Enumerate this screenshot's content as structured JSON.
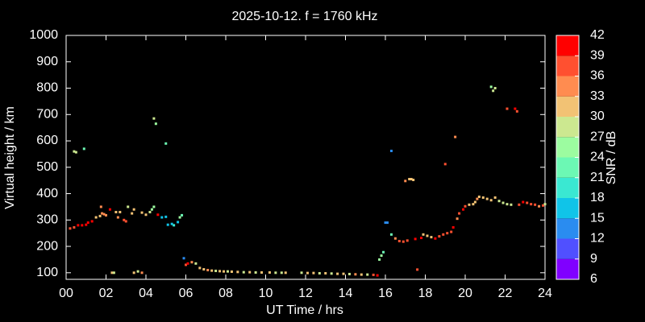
{
  "chart_data": {
    "type": "scatter",
    "title": "2025-10-12. f = 1760 kHz",
    "x_label": "UT Time / hrs",
    "y_label": "Virtual height / km",
    "xlim": [
      0,
      24
    ],
    "xticks": [
      {
        "value": 0,
        "label": "00"
      },
      {
        "value": 2,
        "label": "02"
      },
      {
        "value": 4,
        "label": "04"
      },
      {
        "value": 6,
        "label": "06"
      },
      {
        "value": 8,
        "label": "08"
      },
      10,
      12,
      14,
      16,
      18,
      20,
      22,
      24
    ],
    "ylim": [
      75,
      1000
    ],
    "yticks": [
      100,
      200,
      300,
      400,
      500,
      600,
      700,
      800,
      900,
      1000
    ],
    "colorbar": {
      "label": "SNR / dB",
      "lim": [
        6,
        42
      ],
      "ticks": [
        6,
        9,
        12,
        15,
        18,
        21,
        24,
        27,
        30,
        33,
        36,
        39,
        42
      ],
      "colors": [
        "#8000ff",
        "#5050ff",
        "#2a8cf0",
        "#10c4e8",
        "#3ae8d2",
        "#6cf8b4",
        "#9cfca0",
        "#cce890",
        "#f2c274",
        "#ff8c50",
        "#ff5030",
        "#ff0000"
      ]
    },
    "x": [
      0.2,
      0.4,
      0.6,
      0.8,
      1.0,
      0.4,
      0.5,
      0.9,
      1.1,
      1.3,
      1.5,
      1.7,
      1.8,
      1.9,
      2.0,
      1.75,
      2.2,
      2.5,
      2.7,
      2.6,
      2.9,
      3.0,
      3.1,
      3.3,
      3.4,
      3.8,
      4.0,
      4.2,
      4.3,
      4.4,
      4.4,
      4.5,
      4.6,
      4.8,
      5.0,
      5.0,
      5.1,
      5.3,
      5.4,
      5.6,
      5.7,
      5.8,
      5.9,
      6.0,
      6.1,
      6.3,
      6.5,
      2.3,
      2.4,
      3.4,
      3.6,
      3.8,
      6.7,
      6.9,
      7.1,
      7.3,
      7.5,
      7.7,
      7.9,
      8.1,
      8.3,
      8.6,
      8.9,
      9.2,
      9.5,
      9.8,
      10.2,
      10.5,
      10.8,
      11.0,
      11.8,
      12.1,
      12.4,
      12.7,
      13.0,
      13.3,
      13.6,
      13.9,
      14.2,
      14.5,
      14.8,
      15.1,
      15.4,
      15.6,
      15.7,
      15.8,
      15.9,
      16.0,
      16.1,
      16.3,
      16.3,
      16.5,
      16.7,
      16.9,
      17.1,
      17.0,
      17.2,
      17.3,
      17.4,
      17.5,
      17.8,
      17.6,
      17.9,
      18.1,
      18.3,
      18.5,
      18.7,
      18.9,
      19.1,
      19.3,
      19.4,
      19.6,
      19.7,
      19.9,
      20.0,
      20.2,
      20.4,
      20.5,
      20.6,
      20.7,
      20.9,
      21.1,
      21.3,
      21.5,
      19.0,
      19.5,
      21.3,
      21.5,
      21.4,
      21.7,
      21.9,
      22.1,
      22.3,
      22.1,
      22.5,
      22.6,
      22.7,
      22.9,
      23.1,
      23.3,
      23.5,
      23.7,
      23.9,
      24.0
    ],
    "values": [
      268,
      272,
      280,
      280,
      282,
      560,
      557,
      570,
      290,
      295,
      310,
      315,
      325,
      322,
      318,
      350,
      340,
      330,
      330,
      310,
      300,
      295,
      350,
      325,
      340,
      328,
      320,
      330,
      340,
      350,
      685,
      665,
      320,
      310,
      312,
      590,
      282,
      285,
      280,
      292,
      310,
      318,
      155,
      130,
      135,
      140,
      135,
      100,
      100,
      100,
      105,
      100,
      118,
      113,
      110,
      108,
      107,
      106,
      105,
      105,
      104,
      103,
      102,
      102,
      101,
      101,
      101,
      100,
      100,
      100,
      100,
      99,
      99,
      98,
      98,
      97,
      96,
      96,
      95,
      94,
      93,
      93,
      92,
      90,
      150,
      165,
      178,
      290,
      290,
      562,
      245,
      230,
      220,
      218,
      222,
      448,
      455,
      455,
      452,
      228,
      232,
      112,
      245,
      240,
      235,
      230,
      238,
      245,
      250,
      255,
      272,
      305,
      325,
      340,
      352,
      358,
      360,
      368,
      380,
      388,
      385,
      380,
      375,
      385,
      512,
      615,
      805,
      800,
      790,
      372,
      365,
      360,
      358,
      722,
      722,
      712,
      358,
      368,
      365,
      360,
      358,
      352,
      355,
      360
    ],
    "snr": [
      36,
      36,
      39,
      39,
      39,
      27,
      27,
      21,
      39,
      39,
      30,
      30,
      33,
      33,
      33,
      33,
      39,
      30,
      30,
      33,
      36,
      36,
      27,
      30,
      30,
      30,
      30,
      27,
      24,
      24,
      27,
      24,
      39,
      15,
      15,
      21,
      15,
      15,
      18,
      15,
      24,
      21,
      12,
      36,
      39,
      33,
      27,
      30,
      27,
      30,
      27,
      33,
      30,
      30,
      33,
      30,
      28,
      30,
      31,
      28,
      30,
      32,
      29,
      30,
      28,
      30,
      31,
      27,
      29,
      30,
      28,
      30,
      32,
      29,
      30,
      28,
      31,
      30,
      29,
      33,
      30,
      28,
      36,
      39,
      24,
      24,
      21,
      12,
      12,
      12,
      21,
      33,
      36,
      36,
      36,
      33,
      30,
      30,
      30,
      39,
      39,
      36,
      30,
      30,
      30,
      39,
      36,
      36,
      36,
      36,
      39,
      33,
      36,
      39,
      36,
      30,
      30,
      30,
      33,
      30,
      30,
      30,
      30,
      30,
      36,
      33,
      24,
      27,
      27,
      27,
      27,
      27,
      27,
      36,
      39,
      36,
      36,
      39,
      36,
      36,
      36,
      33,
      36,
      27
    ]
  }
}
